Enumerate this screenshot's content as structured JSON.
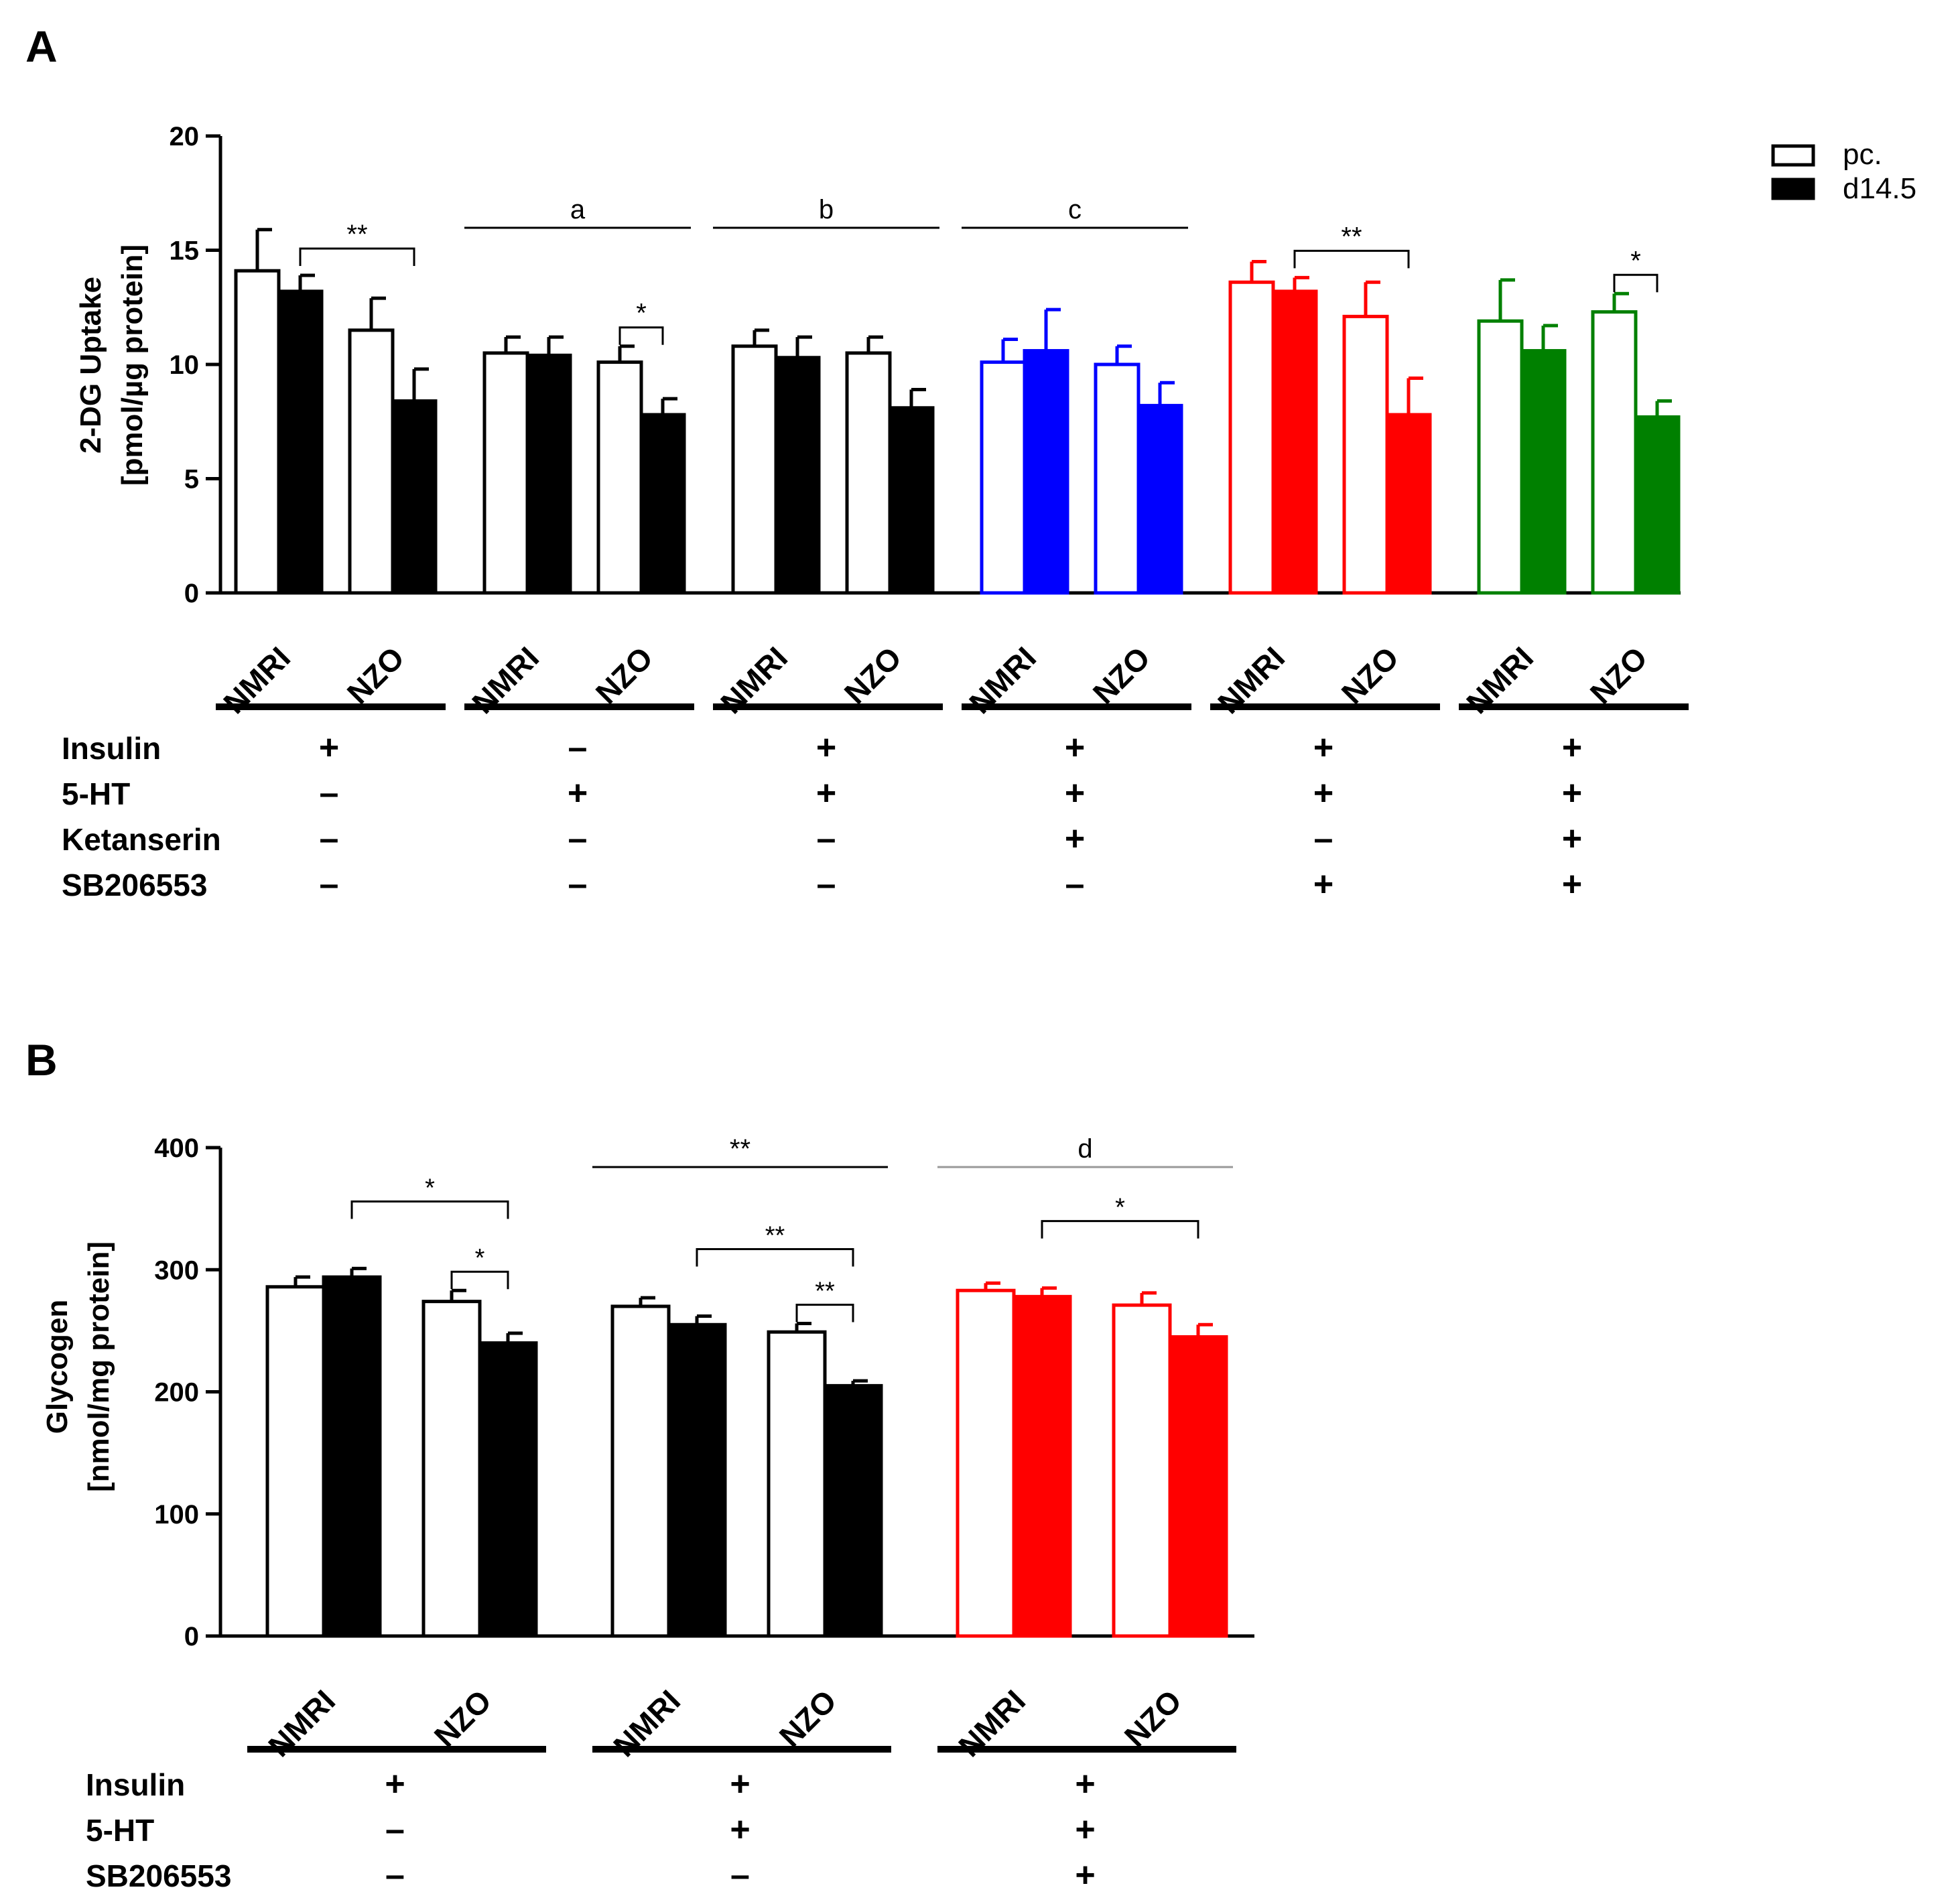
{
  "panel_a": {
    "letter": "A",
    "legend": [
      {
        "label": "pc.",
        "fill": "open"
      },
      {
        "label": "d14.5",
        "fill": "solid"
      }
    ],
    "group_bracket_labels": [
      "a",
      "b",
      "c"
    ],
    "condition_rows": [
      "Insulin",
      "5-HT",
      "Ketanserin",
      "SB206553"
    ],
    "condition_signs": [
      [
        "+",
        "–",
        "–",
        "–"
      ],
      [
        "–",
        "+",
        "–",
        "–"
      ],
      [
        "+",
        "+",
        "–",
        "–"
      ],
      [
        "+",
        "+",
        "+",
        "–"
      ],
      [
        "+",
        "+",
        "–",
        "+"
      ],
      [
        "+",
        "+",
        "+",
        "+"
      ]
    ]
  },
  "panel_b": {
    "letter": "B",
    "top_labels": [
      "**",
      "d"
    ],
    "condition_rows": [
      "Insulin",
      "5-HT",
      "SB206553"
    ],
    "condition_signs": [
      [
        "+",
        "–",
        "–"
      ],
      [
        "+",
        "+",
        "–"
      ],
      [
        "+",
        "+",
        "+"
      ]
    ]
  },
  "chart_data": [
    {
      "type": "bar",
      "panel": "A",
      "ylabel": "2-DG Uptake [pmol/µg protein]",
      "ylim": [
        0,
        20
      ],
      "yticks": [
        0,
        5,
        10,
        15,
        20
      ],
      "legend": [
        "pc.",
        "d14.5"
      ],
      "groups": [
        {
          "color": "#000000",
          "strains": [
            {
              "strain": "NMRI",
              "pc": 14.1,
              "pc_err": 1.8,
              "d145": 13.2,
              "d145_err": 0.7
            },
            {
              "strain": "NZO",
              "pc": 11.5,
              "pc_err": 1.4,
              "d145": 8.4,
              "d145_err": 1.4
            }
          ],
          "sig": [
            {
              "label": "**",
              "from": "NMRI.d145",
              "to": "NZO.d145"
            }
          ]
        },
        {
          "color": "#000000",
          "strains": [
            {
              "strain": "NMRI",
              "pc": 10.5,
              "pc_err": 0.7,
              "d145": 10.4,
              "d145_err": 0.8
            },
            {
              "strain": "NZO",
              "pc": 10.1,
              "pc_err": 0.7,
              "d145": 7.8,
              "d145_err": 0.7
            }
          ],
          "sig": [
            {
              "label": "*",
              "from": "NZO.pc",
              "to": "NZO.d145"
            }
          ]
        },
        {
          "color": "#000000",
          "strains": [
            {
              "strain": "NMRI",
              "pc": 10.8,
              "pc_err": 0.7,
              "d145": 10.3,
              "d145_err": 0.9
            },
            {
              "strain": "NZO",
              "pc": 10.5,
              "pc_err": 0.7,
              "d145": 8.1,
              "d145_err": 0.8
            }
          ],
          "sig": []
        },
        {
          "color": "#0000ff",
          "strains": [
            {
              "strain": "NMRI",
              "pc": 10.1,
              "pc_err": 1.0,
              "d145": 10.6,
              "d145_err": 1.8
            },
            {
              "strain": "NZO",
              "pc": 10.0,
              "pc_err": 0.8,
              "d145": 8.2,
              "d145_err": 1.0
            }
          ],
          "sig": []
        },
        {
          "color": "#ff0000",
          "strains": [
            {
              "strain": "NMRI",
              "pc": 13.6,
              "pc_err": 0.9,
              "d145": 13.2,
              "d145_err": 0.6
            },
            {
              "strain": "NZO",
              "pc": 12.1,
              "pc_err": 1.5,
              "d145": 7.8,
              "d145_err": 1.6
            }
          ],
          "sig": [
            {
              "label": "**",
              "from": "NMRI.d145",
              "to": "NZO.d145"
            }
          ]
        },
        {
          "color": "#008000",
          "strains": [
            {
              "strain": "NMRI",
              "pc": 11.9,
              "pc_err": 1.8,
              "d145": 10.6,
              "d145_err": 1.1
            },
            {
              "strain": "NZO",
              "pc": 12.3,
              "pc_err": 0.8,
              "d145": 7.7,
              "d145_err": 0.7
            }
          ],
          "sig": [
            {
              "label": "*",
              "from": "NZO.pc",
              "to": "NZO.d145"
            }
          ]
        }
      ],
      "group_brackets": [
        {
          "label": "a",
          "group": 1
        },
        {
          "label": "b",
          "group": 2
        },
        {
          "label": "c",
          "group": 3
        }
      ]
    },
    {
      "type": "bar",
      "panel": "B",
      "ylabel": "Glycogen [nmol/mg protein]",
      "ylim": [
        0,
        400
      ],
      "yticks": [
        0,
        100,
        200,
        300,
        400
      ],
      "groups": [
        {
          "color": "#000000",
          "strains": [
            {
              "strain": "NMRI",
              "pc": 286,
              "pc_err": 8,
              "d145": 294,
              "d145_err": 7
            },
            {
              "strain": "NZO",
              "pc": 274,
              "pc_err": 9,
              "d145": 240,
              "d145_err": 8
            }
          ],
          "sig": [
            {
              "label": "*",
              "from": "NMRI.d145",
              "to": "NZO.d145",
              "level": 2
            },
            {
              "label": "*",
              "from": "NZO.pc",
              "to": "NZO.d145",
              "level": 1
            }
          ]
        },
        {
          "color": "#000000",
          "strains": [
            {
              "strain": "NMRI",
              "pc": 270,
              "pc_err": 7,
              "d145": 255,
              "d145_err": 7
            },
            {
              "strain": "NZO",
              "pc": 249,
              "pc_err": 7,
              "d145": 205,
              "d145_err": 4
            }
          ],
          "sig": [
            {
              "label": "**",
              "from": "NMRI.d145",
              "to": "NZO.d145",
              "level": 2
            },
            {
              "label": "**",
              "from": "NZO.pc",
              "to": "NZO.d145",
              "level": 1
            }
          ]
        },
        {
          "color": "#ff0000",
          "strains": [
            {
              "strain": "NMRI",
              "pc": 283,
              "pc_err": 6,
              "d145": 278,
              "d145_err": 7
            },
            {
              "strain": "NZO",
              "pc": 271,
              "pc_err": 10,
              "d145": 245,
              "d145_err": 10
            }
          ],
          "sig": [
            {
              "label": "*",
              "from": "NMRI.d145",
              "to": "NZO.d145",
              "level": 2
            }
          ]
        }
      ],
      "group_brackets": [
        {
          "label": "**",
          "group": 1
        },
        {
          "label": "d",
          "group": 2,
          "color": "#999999"
        }
      ]
    }
  ]
}
